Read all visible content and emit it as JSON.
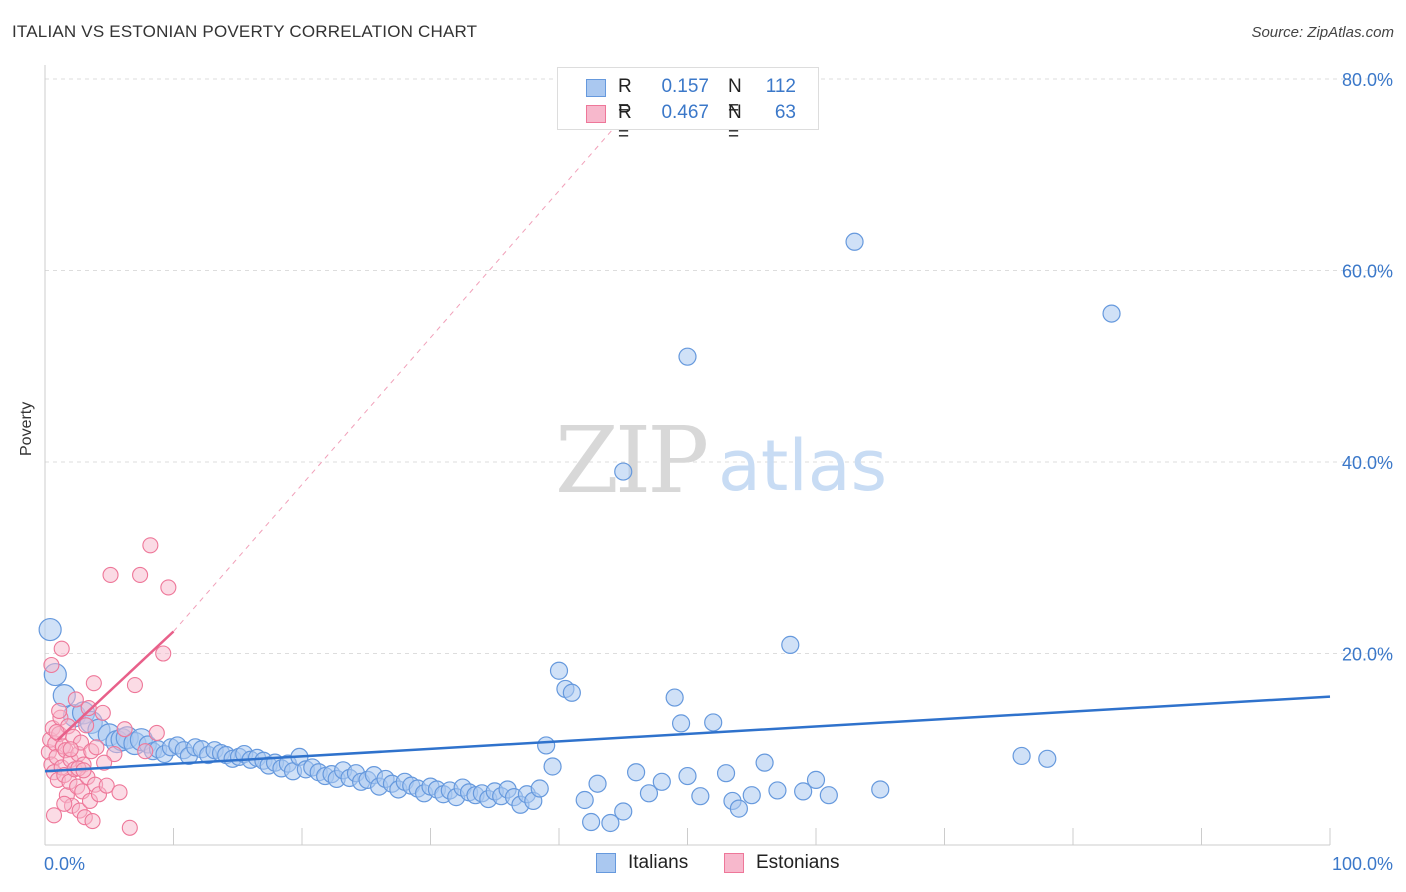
{
  "title": "ITALIAN VS ESTONIAN POVERTY CORRELATION CHART",
  "source": "Source: ZipAtlas.com",
  "watermark": {
    "zip": "ZIP",
    "atlas": "atlas"
  },
  "legend_top": {
    "italians": {
      "r_label": "R =",
      "r_value": "0.157",
      "n_label": "N =",
      "n_value": "112"
    },
    "estonians": {
      "r_label": "R =",
      "r_value": "0.467",
      "n_label": "N =",
      "n_value": "63"
    }
  },
  "legend_bottom": {
    "italians": "Italians",
    "estonians": "Estonians"
  },
  "colors": {
    "italians_fill": "#aac8f0",
    "italians_stroke": "#6699dd",
    "italians_line": "#2f72cc",
    "estonians_fill": "#f7b8cc",
    "estonians_stroke": "#ee7799",
    "estonians_line": "#e8608a",
    "tick_text": "#3b78c9",
    "grid": "#dddddd"
  },
  "chart_data": {
    "type": "scatter",
    "title": "ITALIAN VS ESTONIAN POVERTY CORRELATION CHART",
    "xlabel": "",
    "ylabel": "Poverty",
    "xlim": [
      0,
      100
    ],
    "ylim": [
      0,
      80
    ],
    "x_tick_labels": [
      "0.0%",
      "100.0%"
    ],
    "y_ticks": [
      {
        "value": 20,
        "label": "20.0%"
      },
      {
        "value": 40,
        "label": "40.0%"
      },
      {
        "value": 60,
        "label": "60.0%"
      },
      {
        "value": 80,
        "label": "80.0%"
      }
    ],
    "grid": true,
    "series": [
      {
        "name": "Italians",
        "r": 0.157,
        "n": 112,
        "trend": {
          "x": [
            0,
            100
          ],
          "y": [
            7.7,
            15.5
          ]
        },
        "points": [
          [
            0.4,
            22.5
          ],
          [
            0.8,
            17.8
          ],
          [
            1.5,
            15.6
          ],
          [
            2.3,
            13.5
          ],
          [
            3.0,
            13.8
          ],
          [
            3.6,
            12.8
          ],
          [
            4.2,
            12.0
          ],
          [
            5.0,
            11.5
          ],
          [
            5.6,
            10.8
          ],
          [
            6.0,
            11.0
          ],
          [
            6.4,
            11.2
          ],
          [
            7.0,
            10.6
          ],
          [
            7.5,
            11.0
          ],
          [
            8.0,
            10.5
          ],
          [
            8.4,
            9.8
          ],
          [
            8.8,
            10.0
          ],
          [
            9.3,
            9.5
          ],
          [
            9.8,
            10.2
          ],
          [
            10.3,
            10.4
          ],
          [
            10.8,
            9.9
          ],
          [
            11.2,
            9.3
          ],
          [
            11.7,
            10.2
          ],
          [
            12.2,
            10.0
          ],
          [
            12.7,
            9.4
          ],
          [
            13.2,
            9.9
          ],
          [
            13.7,
            9.6
          ],
          [
            14.1,
            9.4
          ],
          [
            14.6,
            9.0
          ],
          [
            15.1,
            9.2
          ],
          [
            15.5,
            9.5
          ],
          [
            16.0,
            8.9
          ],
          [
            16.5,
            9.1
          ],
          [
            17.0,
            8.8
          ],
          [
            17.4,
            8.3
          ],
          [
            17.9,
            8.6
          ],
          [
            18.4,
            8.0
          ],
          [
            18.9,
            8.5
          ],
          [
            19.3,
            7.7
          ],
          [
            19.8,
            9.2
          ],
          [
            20.3,
            7.9
          ],
          [
            20.8,
            8.1
          ],
          [
            21.3,
            7.6
          ],
          [
            21.8,
            7.2
          ],
          [
            22.3,
            7.4
          ],
          [
            22.7,
            6.9
          ],
          [
            23.2,
            7.8
          ],
          [
            23.7,
            7.0
          ],
          [
            24.2,
            7.5
          ],
          [
            24.6,
            6.6
          ],
          [
            25.1,
            6.8
          ],
          [
            25.6,
            7.3
          ],
          [
            26.0,
            6.1
          ],
          [
            26.5,
            6.9
          ],
          [
            27.0,
            6.4
          ],
          [
            27.5,
            5.8
          ],
          [
            28.0,
            6.6
          ],
          [
            28.5,
            6.2
          ],
          [
            29.0,
            5.9
          ],
          [
            29.5,
            5.4
          ],
          [
            30.0,
            6.1
          ],
          [
            30.5,
            5.8
          ],
          [
            31.0,
            5.3
          ],
          [
            31.5,
            5.7
          ],
          [
            32.0,
            5.0
          ],
          [
            32.5,
            6.0
          ],
          [
            33.0,
            5.5
          ],
          [
            33.5,
            5.2
          ],
          [
            34.0,
            5.4
          ],
          [
            34.5,
            4.8
          ],
          [
            35.0,
            5.6
          ],
          [
            35.5,
            5.1
          ],
          [
            36.0,
            5.8
          ],
          [
            36.5,
            5.0
          ],
          [
            37.0,
            4.2
          ],
          [
            37.5,
            5.3
          ],
          [
            38.0,
            4.6
          ],
          [
            38.5,
            5.9
          ],
          [
            39.0,
            10.4
          ],
          [
            39.5,
            8.2
          ],
          [
            40.0,
            18.2
          ],
          [
            40.5,
            16.3
          ],
          [
            41.0,
            15.9
          ],
          [
            42.0,
            4.7
          ],
          [
            42.5,
            2.4
          ],
          [
            43.0,
            6.4
          ],
          [
            44.0,
            2.3
          ],
          [
            45.0,
            3.5
          ],
          [
            46.0,
            7.6
          ],
          [
            47.0,
            5.4
          ],
          [
            48.0,
            6.6
          ],
          [
            49.0,
            15.4
          ],
          [
            49.5,
            12.7
          ],
          [
            50.0,
            7.2
          ],
          [
            51.0,
            5.1
          ],
          [
            52.0,
            12.8
          ],
          [
            53.0,
            7.5
          ],
          [
            53.5,
            4.6
          ],
          [
            54.0,
            3.8
          ],
          [
            55.0,
            5.2
          ],
          [
            56.0,
            8.6
          ],
          [
            57.0,
            5.7
          ],
          [
            58.0,
            20.9
          ],
          [
            59.0,
            5.6
          ],
          [
            60.0,
            6.8
          ],
          [
            61.0,
            5.2
          ],
          [
            76.0,
            9.3
          ],
          [
            78.0,
            9.0
          ],
          [
            65.0,
            5.8
          ],
          [
            63.0,
            63.0
          ],
          [
            50.0,
            51.0
          ],
          [
            83.0,
            55.5
          ],
          [
            45.0,
            39.0
          ]
        ]
      },
      {
        "name": "Estonians",
        "r": 0.467,
        "n": 63,
        "trend": {
          "x": [
            1.0,
            10.0
          ],
          "y": [
            11.0,
            22.3
          ]
        },
        "trend_extension": {
          "x": [
            10.0,
            45.0
          ],
          "y": [
            22.3,
            76.0
          ]
        },
        "points": [
          [
            0.3,
            9.7
          ],
          [
            0.4,
            11.0
          ],
          [
            0.5,
            8.4
          ],
          [
            0.6,
            12.2
          ],
          [
            0.7,
            7.6
          ],
          [
            0.8,
            10.6
          ],
          [
            0.9,
            9.2
          ],
          [
            1.0,
            6.8
          ],
          [
            1.1,
            11.6
          ],
          [
            1.2,
            13.3
          ],
          [
            1.3,
            8.1
          ],
          [
            1.4,
            10.3
          ],
          [
            1.5,
            7.3
          ],
          [
            1.6,
            9.9
          ],
          [
            1.7,
            5.2
          ],
          [
            1.8,
            12.4
          ],
          [
            1.9,
            6.6
          ],
          [
            2.0,
            8.9
          ],
          [
            2.1,
            4.1
          ],
          [
            2.2,
            11.3
          ],
          [
            2.3,
            7.9
          ],
          [
            2.4,
            15.2
          ],
          [
            2.5,
            6.1
          ],
          [
            2.6,
            9.5
          ],
          [
            2.7,
            3.6
          ],
          [
            2.8,
            10.7
          ],
          [
            2.9,
            5.6
          ],
          [
            3.0,
            8.4
          ],
          [
            3.1,
            2.9
          ],
          [
            3.2,
            12.5
          ],
          [
            3.3,
            7.1
          ],
          [
            3.4,
            14.3
          ],
          [
            3.5,
            4.6
          ],
          [
            3.6,
            9.8
          ],
          [
            3.7,
            2.5
          ],
          [
            3.8,
            16.9
          ],
          [
            3.9,
            6.3
          ],
          [
            4.0,
            10.2
          ],
          [
            4.2,
            5.3
          ],
          [
            4.5,
            13.8
          ],
          [
            4.8,
            6.2
          ],
          [
            5.1,
            28.2
          ],
          [
            5.4,
            9.5
          ],
          [
            5.8,
            5.5
          ],
          [
            6.2,
            12.1
          ],
          [
            6.6,
            1.8
          ],
          [
            7.0,
            16.7
          ],
          [
            7.4,
            28.2
          ],
          [
            7.8,
            9.8
          ],
          [
            8.2,
            31.3
          ],
          [
            8.7,
            11.7
          ],
          [
            9.2,
            20.0
          ],
          [
            9.6,
            26.9
          ],
          [
            0.5,
            18.8
          ],
          [
            1.3,
            20.5
          ],
          [
            0.7,
            3.1
          ],
          [
            1.1,
            14.0
          ],
          [
            2.0,
            10.0
          ],
          [
            2.6,
            8.0
          ],
          [
            1.5,
            4.3
          ],
          [
            3.0,
            7.8
          ],
          [
            0.9,
            11.8
          ],
          [
            4.6,
            8.6
          ]
        ]
      }
    ]
  }
}
